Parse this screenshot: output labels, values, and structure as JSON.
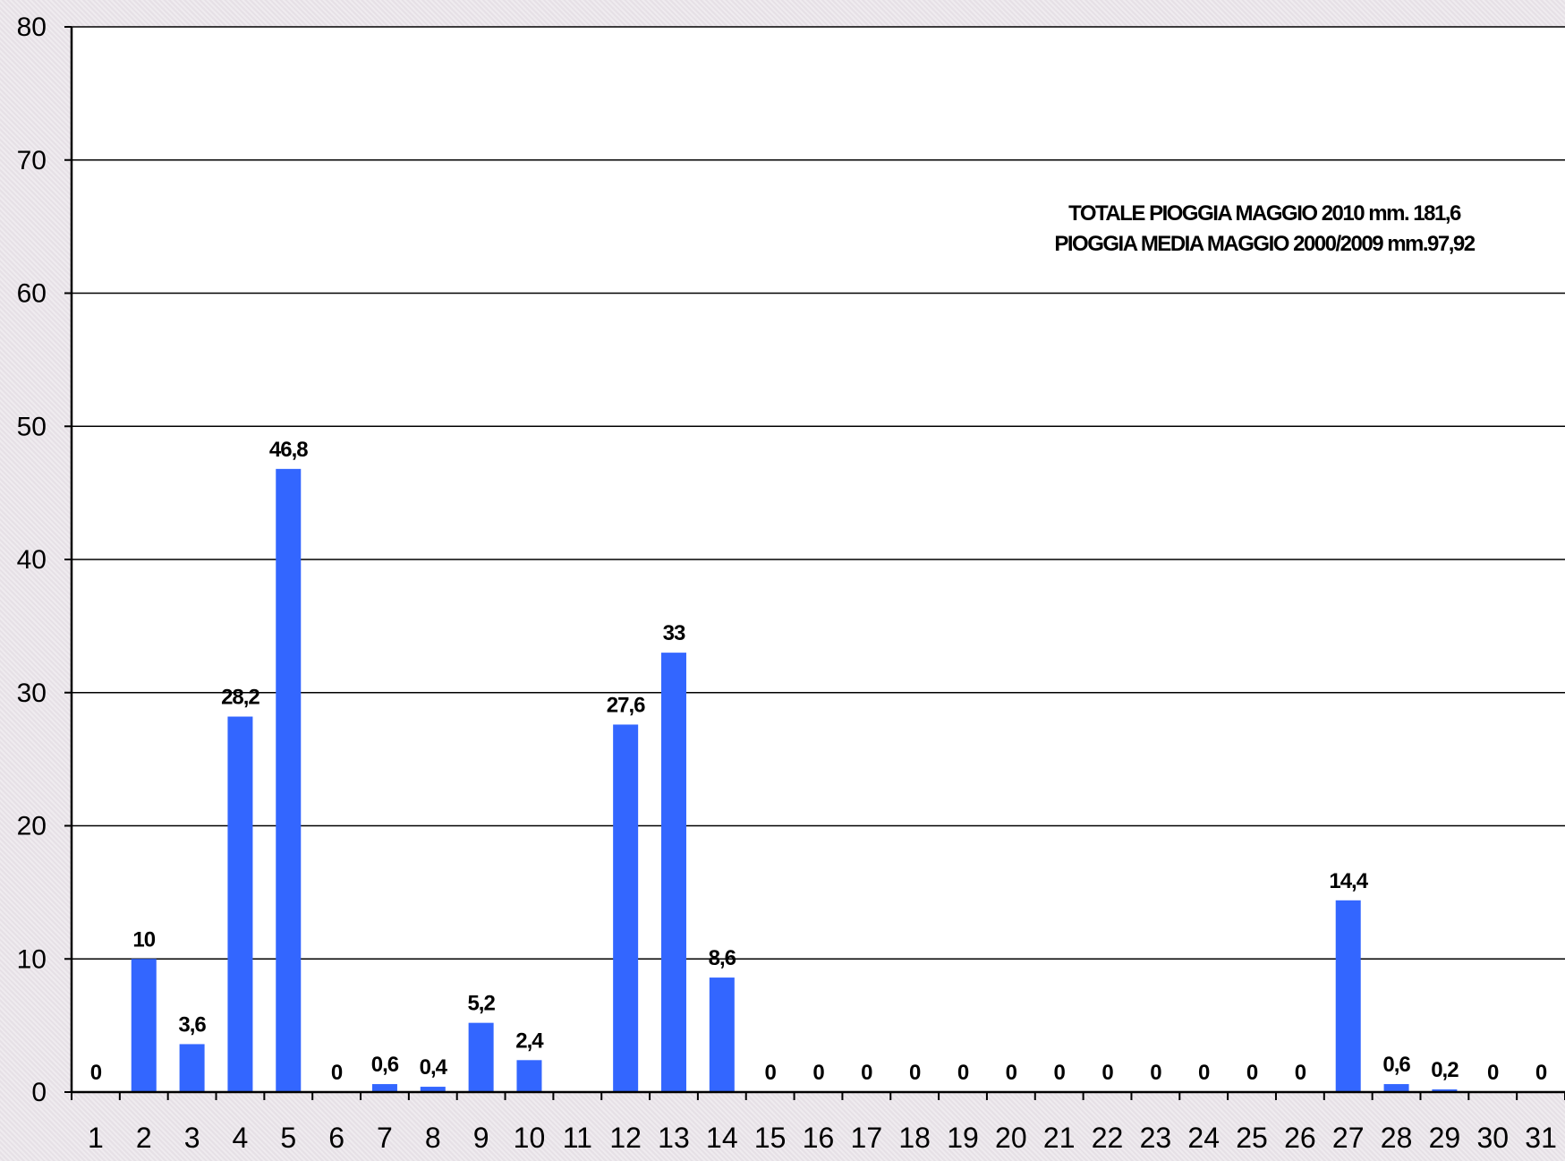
{
  "chart_data": {
    "type": "bar",
    "categories": [
      "1",
      "2",
      "3",
      "4",
      "5",
      "6",
      "7",
      "8",
      "9",
      "10",
      "11",
      "12",
      "13",
      "14",
      "15",
      "16",
      "17",
      "18",
      "19",
      "20",
      "21",
      "22",
      "23",
      "24",
      "25",
      "26",
      "27",
      "28",
      "29",
      "30",
      "31"
    ],
    "values": [
      0,
      10,
      3.6,
      28.2,
      46.8,
      0,
      0.6,
      0.4,
      5.2,
      2.4,
      null,
      27.6,
      33,
      8.6,
      0,
      0,
      0,
      0,
      0,
      0,
      0,
      0,
      0,
      0,
      0,
      0,
      14.4,
      0.6,
      0.2,
      0,
      0
    ],
    "data_labels": [
      "0",
      "10",
      "3,6",
      "28,2",
      "46,8",
      "0",
      "0,6",
      "0,4",
      "5,2",
      "2,4",
      "",
      "27,6",
      "33",
      "8,6",
      "0",
      "0",
      "0",
      "0",
      "0",
      "0",
      "0",
      "0",
      "0",
      "0",
      "0",
      "0",
      "14,4",
      "0,6",
      "0,2",
      "0",
      "0"
    ],
    "ylim": [
      0,
      80
    ],
    "yticks": [
      0,
      10,
      20,
      30,
      40,
      50,
      60,
      70,
      80
    ],
    "grid": true,
    "bar_color": "#3366ff",
    "annotation_lines": [
      "TOTALE PIOGGIA MAGGIO 2010  mm.  181,6",
      "PIOGGIA MEDIA MAGGIO 2000/2009  mm.97,92"
    ]
  }
}
